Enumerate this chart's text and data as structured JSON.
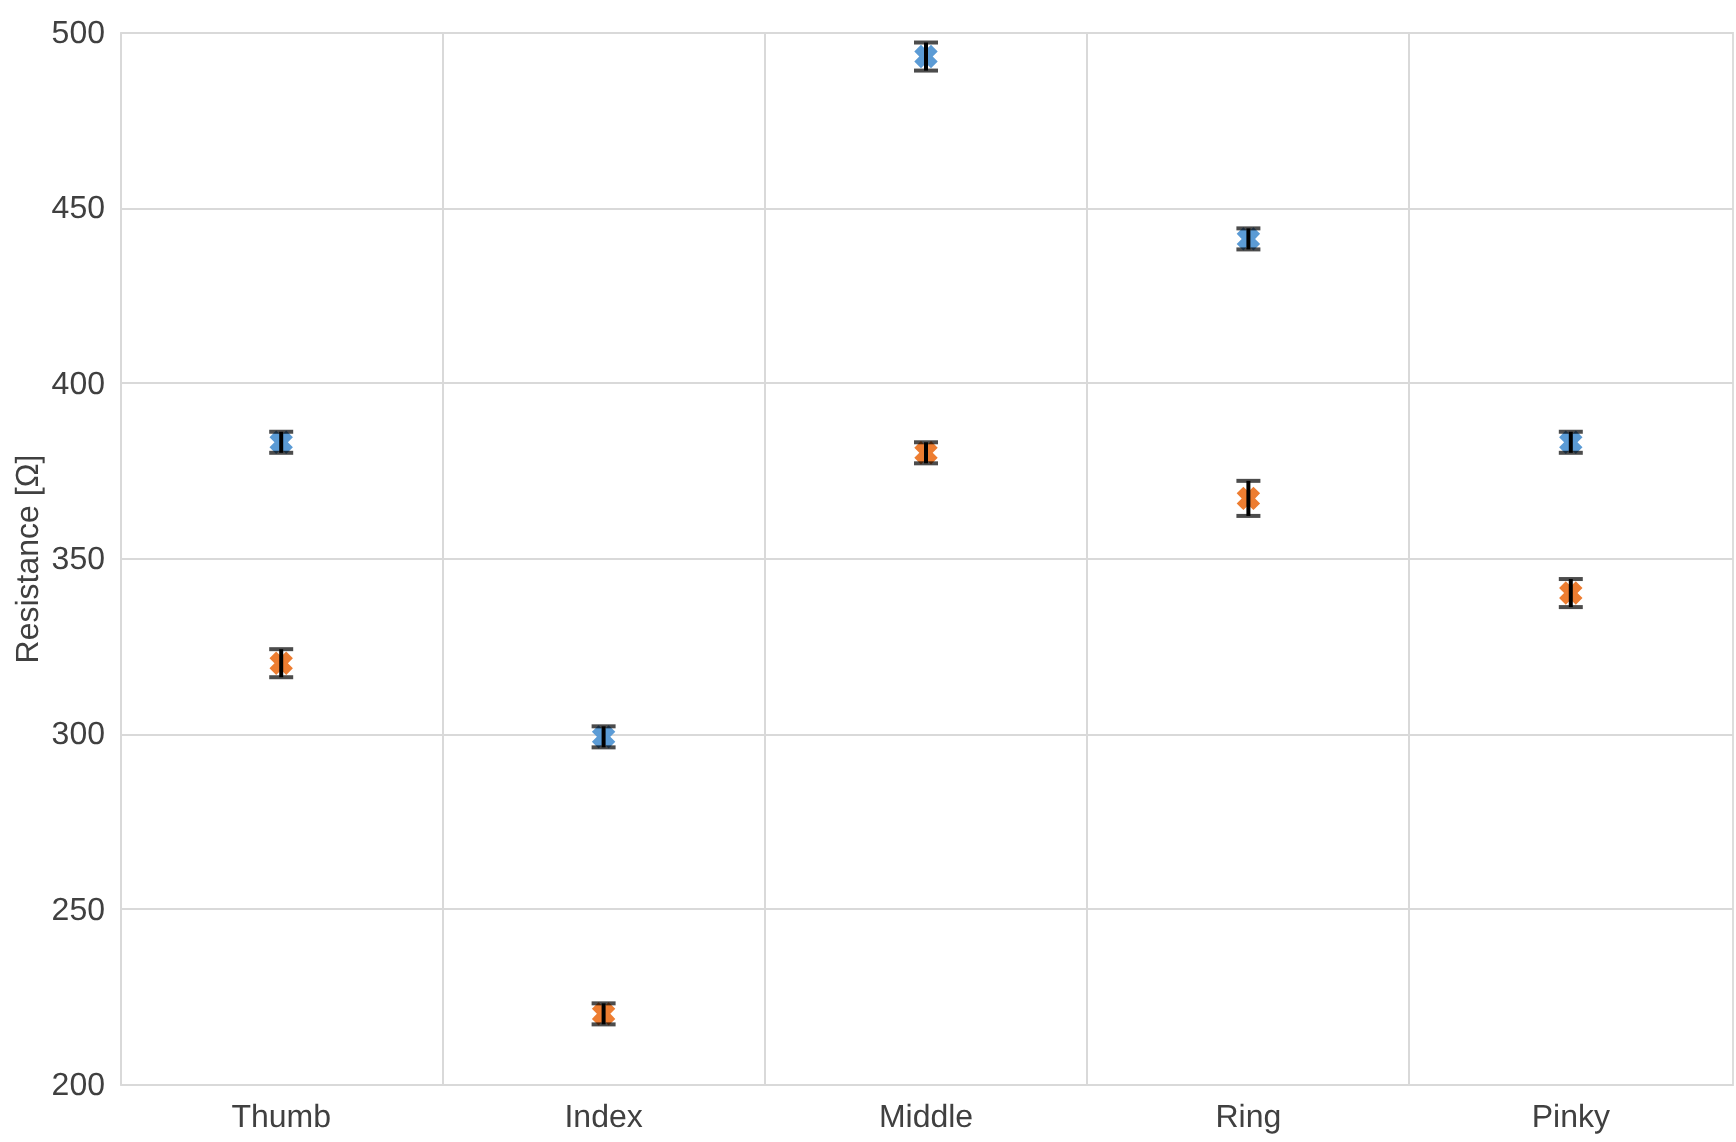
{
  "chart_data": {
    "type": "scatter",
    "ylabel": "Resistance [Ω]",
    "categories": [
      "Thumb",
      "Index",
      "Middle",
      "Ring",
      "Pinky"
    ],
    "series": [
      {
        "color": "#5b9bd5",
        "values": [
          383,
          299,
          493,
          441,
          383
        ],
        "errors": [
          3,
          3,
          4,
          3,
          3
        ]
      },
      {
        "color": "#ed7d31",
        "values": [
          320,
          220,
          380,
          367,
          340
        ],
        "errors": [
          4,
          3,
          3,
          5,
          4
        ]
      }
    ],
    "ylim": [
      200,
      500
    ],
    "yticks": [
      200,
      250,
      300,
      350,
      400,
      450,
      500
    ],
    "grid": true,
    "marker": "cross"
  }
}
